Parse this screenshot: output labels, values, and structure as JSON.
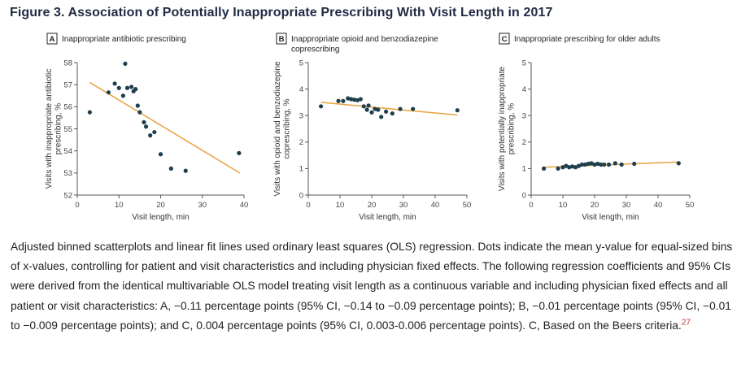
{
  "figure": {
    "title": "Figure 3.  Association of Potentially Inappropriate Prescribing With Visit Length in 2017",
    "caption": "Adjusted binned scatterplots and linear fit lines used ordinary least squares (OLS) regression. Dots indicate the mean y-value for equal-sized bins of x-values, controlling for patient and visit characteristics and including physician fixed effects. The following regression coefficients and 95% CIs were derived from the identical multivariable OLS model treating visit length as a continuous variable and including physician fixed effects and all patient or visit characteristics: A, −0.11 percentage points (95% CI, −0.14 to −0.09 percentage points); B, −0.01 percentage points (95% CI, −0.01 to −0.009 percentage points); and C, 0.004 percentage points (95% CI, 0.003-0.006 percentage points). C, Based on the Beers criteria.",
    "caption_ref": "27"
  },
  "colors": {
    "fit_line": "#e8a23d",
    "dots": "#1e3f4e",
    "title": "#1f2a44",
    "reference": "#c0392b"
  },
  "chart_data": [
    {
      "panel": "A",
      "type": "scatter",
      "title": [
        "Inappropriate antibiotic prescribing"
      ],
      "xlabel": "Visit length, min",
      "ylabel": [
        "Visits with inappropriate antibiotic",
        "prescribing, %"
      ],
      "xlim": [
        0,
        40
      ],
      "ylim": [
        52,
        58
      ],
      "xticks": [
        0,
        10,
        20,
        30,
        40
      ],
      "yticks": [
        52,
        53,
        54,
        55,
        56,
        57,
        58
      ],
      "grid": false,
      "points": [
        [
          3,
          55.75
        ],
        [
          7.5,
          56.65
        ],
        [
          9,
          57.05
        ],
        [
          10,
          56.85
        ],
        [
          11,
          56.5
        ],
        [
          11.5,
          57.95
        ],
        [
          12,
          56.85
        ],
        [
          13,
          56.9
        ],
        [
          13.5,
          56.7
        ],
        [
          14,
          56.8
        ],
        [
          14.5,
          56.05
        ],
        [
          15,
          55.75
        ],
        [
          16,
          55.3
        ],
        [
          16.5,
          55.1
        ],
        [
          17.5,
          54.7
        ],
        [
          18.5,
          54.85
        ],
        [
          20,
          53.85
        ],
        [
          22.5,
          53.2
        ],
        [
          26,
          53.1
        ],
        [
          38.8,
          53.9
        ]
      ],
      "fit": {
        "x": [
          3,
          39
        ],
        "y": [
          57.1,
          53.0
        ]
      }
    },
    {
      "panel": "B",
      "type": "scatter",
      "title": [
        "Inappropriate opioid and benzodiazepine",
        "coprescribing"
      ],
      "xlabel": "Visit length, min",
      "ylabel": [
        "Visits with opioid and benzodiazepine",
        "coprescribing, %"
      ],
      "xlim": [
        0,
        50
      ],
      "ylim": [
        0,
        5
      ],
      "xticks": [
        0,
        10,
        20,
        30,
        40,
        50
      ],
      "yticks": [
        0,
        1,
        2,
        3,
        4,
        5
      ],
      "grid": false,
      "points": [
        [
          4,
          3.35
        ],
        [
          9.5,
          3.55
        ],
        [
          11,
          3.55
        ],
        [
          12.5,
          3.65
        ],
        [
          13.5,
          3.62
        ],
        [
          14.5,
          3.6
        ],
        [
          15.5,
          3.58
        ],
        [
          16.5,
          3.62
        ],
        [
          17.5,
          3.35
        ],
        [
          18.5,
          3.22
        ],
        [
          19,
          3.38
        ],
        [
          20,
          3.12
        ],
        [
          21,
          3.25
        ],
        [
          22,
          3.22
        ],
        [
          23,
          2.95
        ],
        [
          24.5,
          3.15
        ],
        [
          26.5,
          3.08
        ],
        [
          29,
          3.25
        ],
        [
          33,
          3.25
        ],
        [
          47,
          3.2
        ]
      ],
      "fit": {
        "x": [
          4,
          47
        ],
        "y": [
          3.5,
          3.02
        ]
      }
    },
    {
      "panel": "C",
      "type": "scatter",
      "title": [
        "Inappropriate prescribing for older adults"
      ],
      "xlabel": "Visit length, min",
      "ylabel": [
        "Visits with potentially inappropriate",
        "prescribing, %"
      ],
      "xlim": [
        0,
        50
      ],
      "ylim": [
        0,
        5
      ],
      "xticks": [
        0,
        10,
        20,
        30,
        40,
        50
      ],
      "yticks": [
        0,
        1,
        2,
        3,
        4,
        5
      ],
      "grid": false,
      "points": [
        [
          4,
          1.0
        ],
        [
          8.5,
          1.0
        ],
        [
          10,
          1.05
        ],
        [
          11,
          1.1
        ],
        [
          12,
          1.05
        ],
        [
          13,
          1.08
        ],
        [
          14,
          1.05
        ],
        [
          15,
          1.1
        ],
        [
          16,
          1.15
        ],
        [
          17,
          1.15
        ],
        [
          18,
          1.18
        ],
        [
          19,
          1.2
        ],
        [
          20,
          1.15
        ],
        [
          21,
          1.18
        ],
        [
          22,
          1.15
        ],
        [
          23,
          1.15
        ],
        [
          24.5,
          1.15
        ],
        [
          26.5,
          1.2
        ],
        [
          28.5,
          1.15
        ],
        [
          32.5,
          1.18
        ],
        [
          46.5,
          1.2
        ]
      ],
      "fit": {
        "x": [
          4,
          47
        ],
        "y": [
          1.05,
          1.25
        ]
      }
    }
  ]
}
